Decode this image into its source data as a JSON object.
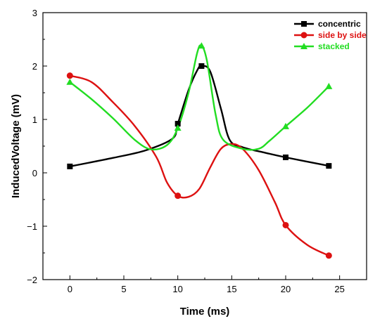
{
  "chart_data": {
    "type": "line",
    "xlabel": "Time (ms)",
    "ylabel": "InducedVoltage (mV)",
    "xlim": [
      -2.5,
      27.5
    ],
    "ylim": [
      -2,
      3
    ],
    "x_ticks": [
      0,
      5,
      10,
      15,
      20,
      25
    ],
    "x_tick_labels": [
      "0",
      "5",
      "10",
      "15",
      "20",
      "25"
    ],
    "y_ticks": [
      -2,
      -1,
      0,
      1,
      2,
      3
    ],
    "y_tick_labels": [
      "−2",
      "−1",
      "0",
      "1",
      "2",
      "3"
    ],
    "grid": false,
    "legend_position": "top-right",
    "series": [
      {
        "name": "concentric",
        "color": "#000000",
        "marker": "square",
        "markers": [
          [
            0,
            0.12
          ],
          [
            10,
            0.92
          ],
          [
            12.2,
            2.0
          ],
          [
            20,
            0.29
          ],
          [
            24,
            0.13
          ]
        ],
        "curve": [
          [
            0,
            0.12
          ],
          [
            4,
            0.28
          ],
          [
            7,
            0.42
          ],
          [
            9.5,
            0.64
          ],
          [
            10,
            0.92
          ],
          [
            11,
            1.55
          ],
          [
            11.8,
            1.92
          ],
          [
            12.2,
            2.0
          ],
          [
            13,
            1.9
          ],
          [
            14,
            1.2
          ],
          [
            14.8,
            0.62
          ],
          [
            16,
            0.48
          ],
          [
            18,
            0.38
          ],
          [
            20,
            0.29
          ],
          [
            24,
            0.13
          ]
        ]
      },
      {
        "name": "side by side",
        "color": "#dd1111",
        "marker": "circle",
        "markers": [
          [
            0,
            1.82
          ],
          [
            10,
            -0.43
          ],
          [
            20,
            -0.98
          ],
          [
            24,
            -1.55
          ]
        ],
        "curve": [
          [
            0,
            1.82
          ],
          [
            2,
            1.7
          ],
          [
            4,
            1.32
          ],
          [
            6,
            0.88
          ],
          [
            8,
            0.3
          ],
          [
            9,
            -0.18
          ],
          [
            10,
            -0.43
          ],
          [
            11,
            -0.45
          ],
          [
            12,
            -0.3
          ],
          [
            13,
            0.1
          ],
          [
            14,
            0.45
          ],
          [
            15,
            0.54
          ],
          [
            16,
            0.45
          ],
          [
            17.5,
            0.05
          ],
          [
            19,
            -0.55
          ],
          [
            20,
            -0.98
          ],
          [
            22,
            -1.35
          ],
          [
            24,
            -1.55
          ]
        ]
      },
      {
        "name": "stacked",
        "color": "#22dd22",
        "marker": "triangle",
        "markers": [
          [
            0,
            1.7
          ],
          [
            10,
            0.84
          ],
          [
            12.2,
            2.38
          ],
          [
            20,
            0.87
          ],
          [
            24,
            1.62
          ]
        ],
        "curve": [
          [
            0,
            1.7
          ],
          [
            2,
            1.38
          ],
          [
            4,
            1.02
          ],
          [
            6,
            0.62
          ],
          [
            7.5,
            0.44
          ],
          [
            9,
            0.52
          ],
          [
            10,
            0.84
          ],
          [
            11,
            1.5
          ],
          [
            11.8,
            2.25
          ],
          [
            12.2,
            2.38
          ],
          [
            12.7,
            2.1
          ],
          [
            13.5,
            1.1
          ],
          [
            14.2,
            0.62
          ],
          [
            16,
            0.45
          ],
          [
            17.5,
            0.45
          ],
          [
            18.5,
            0.6
          ],
          [
            20,
            0.87
          ],
          [
            22,
            1.22
          ],
          [
            24,
            1.62
          ]
        ]
      }
    ]
  }
}
